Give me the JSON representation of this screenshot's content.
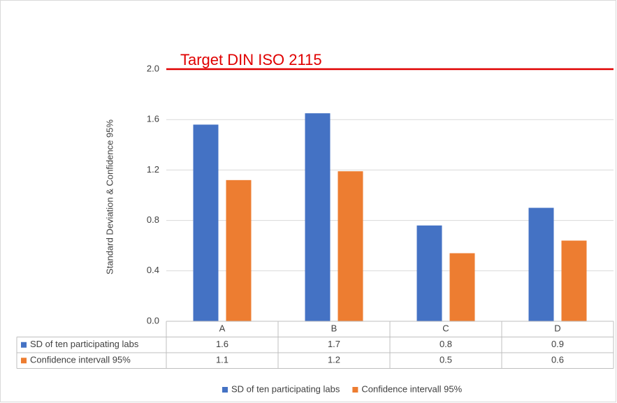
{
  "chart_data": {
    "type": "bar",
    "y_axis_label": "Standard Deviation & Confidence 95%",
    "categories": [
      "A",
      "B",
      "C",
      "D"
    ],
    "series": [
      {
        "name": "SD of ten participating labs",
        "color": "#4472c4",
        "values": [
          1.56,
          1.65,
          0.76,
          0.9
        ],
        "value_labels": [
          "1.6",
          "1.7",
          "0.8",
          "0.9"
        ]
      },
      {
        "name": "Confidence intervall 95%",
        "color": "#ed7d31",
        "values": [
          1.12,
          1.19,
          0.54,
          0.64
        ],
        "value_labels": [
          "1.1",
          "1.2",
          "0.5",
          "0.6"
        ]
      }
    ],
    "ylim": [
      0,
      2
    ],
    "yticks": [
      {
        "value": 0,
        "label": "0.0"
      },
      0.4,
      0.8,
      1.2,
      1.6,
      {
        "value": 2,
        "label": "2.0"
      }
    ],
    "grid": true,
    "target": {
      "label": "Target DIN ISO 2115",
      "value": 2,
      "color": "#e00000"
    },
    "legend": "bottom"
  }
}
